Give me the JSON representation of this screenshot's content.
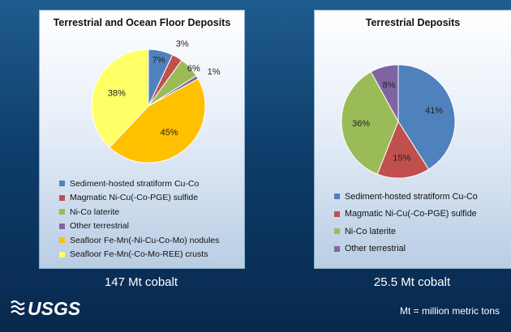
{
  "chart_data": [
    {
      "type": "pie",
      "title": "Terrestrial and Ocean Floor Deposits",
      "slices": [
        {
          "label": "Sediment-hosted stratiform Cu-Co",
          "value": 7,
          "color": "#4f81bd"
        },
        {
          "label": "Magmatic Ni-Cu(-Co-PGE) sulfide",
          "value": 3,
          "color": "#c0504d"
        },
        {
          "label": "Ni-Co laterite",
          "value": 6,
          "color": "#9bbb59"
        },
        {
          "label": "Other terrestrial",
          "value": 1,
          "color": "#8064a2"
        },
        {
          "label": "Seafloor Fe-Mn(-Ni-Cu-Co-Mo) nodules",
          "value": 45,
          "color": "#ffc000"
        },
        {
          "label": "Seafloor Fe-Mn(-Co-Mo-REE) crusts",
          "value": 38,
          "color": "#ffff66"
        }
      ],
      "data_labels": [
        "7%",
        "3%",
        "6%",
        "1%",
        "45%",
        "38%"
      ],
      "total_label": "147 Mt cobalt"
    },
    {
      "type": "pie",
      "title": "Terrestrial Deposits",
      "slices": [
        {
          "label": "Sediment-hosted stratiform Cu-Co",
          "value": 41,
          "color": "#4f81bd"
        },
        {
          "label": "Magmatic Ni-Cu(-Co-PGE) sulfide",
          "value": 15,
          "color": "#c0504d"
        },
        {
          "label": "Ni-Co laterite",
          "value": 36,
          "color": "#9bbb59"
        },
        {
          "label": "Other terrestrial",
          "value": 8,
          "color": "#8064a2"
        }
      ],
      "data_labels": [
        "41%",
        "15%",
        "36%",
        "8%"
      ],
      "total_label": "25.5 Mt cobalt"
    }
  ],
  "logo_text": "USGS",
  "footnote": "Mt = million metric tons"
}
